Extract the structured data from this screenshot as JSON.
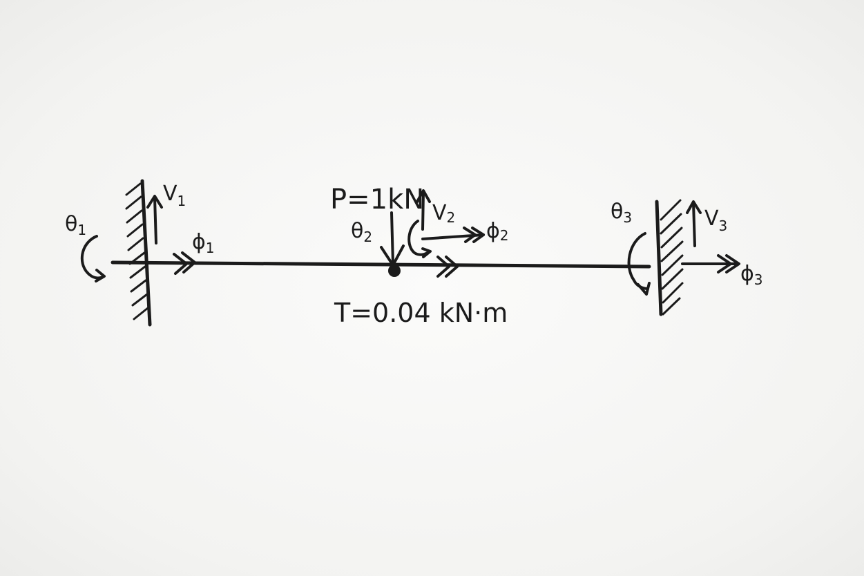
{
  "diagram": {
    "load_p": "P=1kN",
    "torque_t": "T=0.04 kN·m",
    "node1": {
      "theta": "θ",
      "theta_sub": "1",
      "v": "V",
      "v_sub": "1",
      "phi": "ϕ",
      "phi_sub": "1"
    },
    "node2": {
      "theta": "θ",
      "theta_sub": "2",
      "v": "V",
      "v_sub": "2",
      "phi": "ϕ",
      "phi_sub": "2"
    },
    "node3": {
      "theta": "θ",
      "theta_sub": "3",
      "v": "V",
      "v_sub": "3",
      "phi": "ϕ",
      "phi_sub": "3"
    },
    "ink_color": "#1b1b1b",
    "paper_color": "#f5f5f3"
  }
}
